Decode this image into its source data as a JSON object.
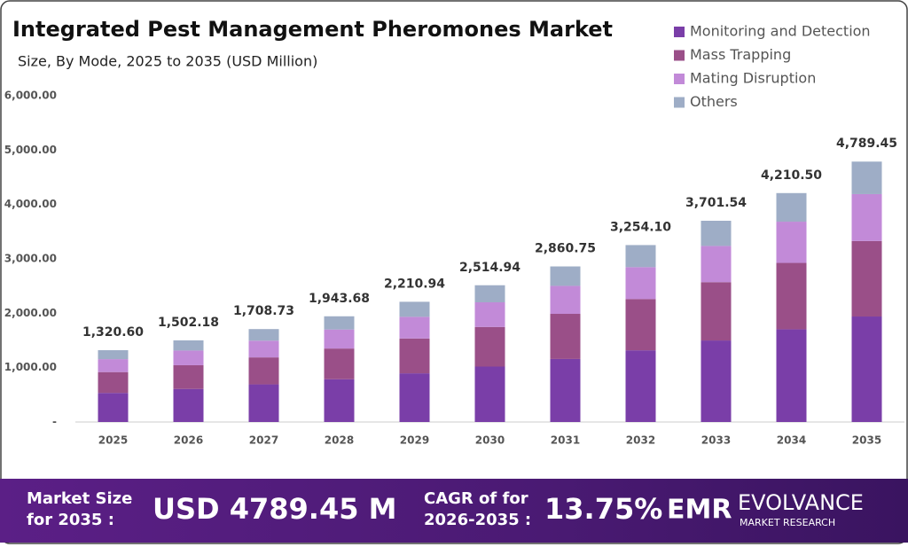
{
  "chart_data": {
    "type": "stacked_bar",
    "title": "Integrated Pest Management Pheromones Market",
    "subtitle": "Size, By Mode, 2025 to 2035 (USD Million)",
    "categories": [
      "2025",
      "2026",
      "2027",
      "2028",
      "2029",
      "2030",
      "2031",
      "2032",
      "2033",
      "2034",
      "2035"
    ],
    "series": [
      {
        "name": "Monitoring and Detection",
        "color": "#7a3ea8",
        "values": [
          535,
          608,
          692,
          787,
          895,
          1019,
          1159,
          1318,
          1499,
          1705,
          1940
        ]
      },
      {
        "name": "Mass Trapping",
        "color": "#9a4f88",
        "values": [
          383,
          436,
          496,
          564,
          641,
          729,
          830,
          944,
          1073,
          1221,
          1389
        ]
      },
      {
        "name": "Mating Disruption",
        "color": "#c28ad8",
        "values": [
          238,
          270,
          308,
          350,
          398,
          453,
          515,
          586,
          666,
          758,
          862
        ]
      },
      {
        "name": "Others",
        "color": "#9eadc6",
        "values": [
          165,
          188,
          213,
          243,
          277,
          314,
          357,
          406,
          463,
          526,
          598
        ]
      }
    ],
    "totals": [
      1320.6,
      1502.18,
      1708.73,
      1943.68,
      2210.94,
      2514.94,
      2860.75,
      3254.1,
      3701.54,
      4210.5,
      4789.45
    ],
    "totals_labels": [
      "1,320.60",
      "1,502.18",
      "1,708.73",
      "1,943.68",
      "2,210.94",
      "2,514.94",
      "2,860.75",
      "3,254.10",
      "3,701.54",
      "4,210.50",
      "4,789.45"
    ],
    "ylim": [
      0,
      6000
    ],
    "yticks": [
      {
        "value": 0,
        "label": "-"
      },
      {
        "value": 1000,
        "label": "1,000.00"
      },
      {
        "value": 2000,
        "label": "2,000.00"
      },
      {
        "value": 3000,
        "label": "3,000.00"
      },
      {
        "value": 4000,
        "label": "4,000.00"
      },
      {
        "value": 5000,
        "label": "5,000.00"
      },
      {
        "value": 6000,
        "label": "6,000.00"
      }
    ],
    "grid": false,
    "legend": "top-right"
  },
  "footer": {
    "market_size_label": [
      "Market Size",
      "for 2035 :"
    ],
    "market_size_value": "USD 4789.45 M",
    "cagr_label": [
      "CAGR of for",
      "2026-2035 :"
    ],
    "cagr_value": "13.75%",
    "logo_mark": "EMR",
    "logo_name": "EVOLVANCE",
    "logo_tagline": "MARKET RESEARCH"
  }
}
